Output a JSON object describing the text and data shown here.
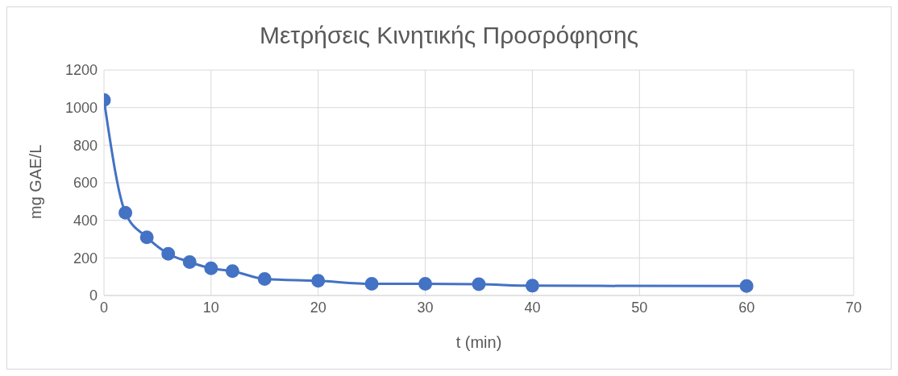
{
  "chart_data": {
    "type": "line",
    "title": "Μετρήσεις Κινητικής Προσρόφησης",
    "xlabel": "t (min)",
    "ylabel": "mg GAE/L",
    "x": [
      0,
      2,
      4,
      6,
      8,
      10,
      12,
      15,
      20,
      25,
      30,
      35,
      40,
      60
    ],
    "series": [
      {
        "color": "#4472c4",
        "values": [
          1040,
          440,
          310,
          222,
          178,
          145,
          130,
          88,
          78,
          62,
          62,
          60,
          52,
          50
        ]
      }
    ],
    "xlim": [
      0,
      70
    ],
    "xticks": [
      0,
      10,
      20,
      30,
      40,
      50,
      60,
      70
    ],
    "ylim": [
      0,
      1200
    ],
    "yticks": [
      0,
      200,
      400,
      600,
      800,
      1000,
      1200
    ],
    "grid": true,
    "marker": "circle",
    "line_style": "solid",
    "legend": false
  }
}
